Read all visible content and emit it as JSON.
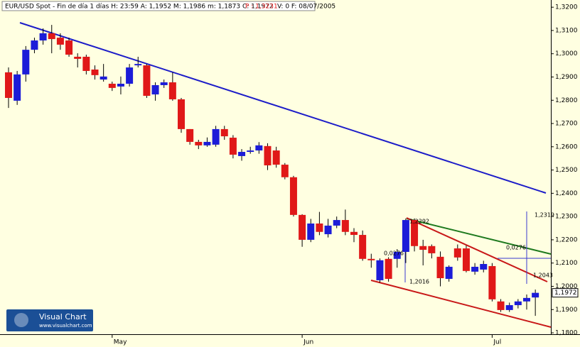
{
  "chart_data": {
    "type": "candlestick",
    "header": "EUR/USD Spot - Fin de día 1 días H: 23:59 A: 1,1952 M: 1,1986 m: 1,1873 C: 1,1972",
    "header_p": "P : 1,3231",
    "header_rest": "V: 0 F: 08/07/2005",
    "logo_title": "Visual Chart",
    "logo_url": "www.visualchart.com",
    "up_color": "#1c1cd8",
    "down_color": "#e01818",
    "categories": [
      null,
      null,
      null,
      null,
      null,
      null,
      null,
      null,
      null,
      null,
      null,
      null,
      "May",
      null,
      null,
      null,
      null,
      null,
      null,
      null,
      null,
      null,
      null,
      null,
      null,
      null,
      null,
      null,
      null,
      null,
      null,
      null,
      null,
      null,
      "Jun",
      null,
      null,
      null,
      null,
      null,
      null,
      null,
      null,
      null,
      null,
      null,
      null,
      null,
      null,
      null,
      null,
      null,
      null,
      null,
      null,
      null,
      "Jul",
      null,
      null,
      null,
      null,
      null
    ],
    "open": [
      1.292,
      1.2798,
      1.2911,
      1.3017,
      1.3057,
      1.3088,
      1.3069,
      1.3057,
      1.2987,
      1.2987,
      1.2932,
      1.2889,
      1.2871,
      1.2859,
      1.2871,
      1.295,
      1.295,
      1.2825,
      1.2865,
      1.2877,
      1.2804,
      1.2676,
      1.2621,
      1.2606,
      1.2609,
      1.2676,
      1.2639,
      1.256,
      1.2578,
      1.2584,
      1.2603,
      1.2584,
      1.2523,
      1.2469,
      1.2307,
      1.22,
      1.227,
      1.2224,
      1.2261,
      1.2285,
      1.2234,
      1.2221,
      1.2118,
      1.2026,
      1.2118,
      1.2118,
      1.2148,
      1.2285,
      1.2173,
      1.2173,
      1.2127,
      1.2032,
      1.2163,
      1.2163,
      1.2063,
      1.2072,
      1.2087,
      1.1935,
      1.1898,
      1.1919,
      1.1935,
      1.1952
    ],
    "high": [
      1.2941,
      1.2926,
      1.3033,
      1.3069,
      1.3109,
      1.3124,
      1.3088,
      1.3069,
      1.3002,
      1.2996,
      1.295,
      1.2956,
      1.288,
      1.2902,
      1.2956,
      1.2987,
      1.2956,
      1.2877,
      1.2889,
      1.292,
      1.281,
      1.2676,
      1.263,
      1.264,
      1.269,
      1.269,
      1.265,
      1.259,
      1.26,
      1.262,
      1.2615,
      1.26,
      1.253,
      1.2475,
      1.231,
      1.229,
      1.232,
      1.229,
      1.23,
      1.233,
      1.225,
      1.224,
      1.214,
      1.212,
      1.2125,
      1.216,
      1.2292,
      1.2292,
      1.22,
      1.218,
      1.215,
      1.209,
      1.218,
      1.2175,
      1.21,
      1.211,
      1.21,
      1.1945,
      1.193,
      1.1945,
      1.1965,
      1.1986
    ],
    "low": [
      1.2767,
      1.278,
      1.288,
      1.3002,
      1.3039,
      1.3002,
      1.3017,
      1.2987,
      1.2941,
      1.2911,
      1.2889,
      1.288,
      1.284,
      1.2825,
      1.2859,
      1.2941,
      1.281,
      1.2798,
      1.2853,
      1.2798,
      1.266,
      1.2609,
      1.259,
      1.26,
      1.26,
      1.263,
      1.255,
      1.254,
      1.257,
      1.257,
      1.25,
      1.251,
      1.246,
      1.23,
      1.217,
      1.219,
      1.222,
      1.221,
      1.225,
      1.222,
      1.219,
      1.211,
      1.208,
      1.2016,
      1.202,
      1.208,
      1.21,
      1.215,
      1.209,
      1.212,
      1.2,
      1.202,
      1.211,
      1.206,
      1.205,
      1.206,
      1.1935,
      1.189,
      1.189,
      1.1905,
      1.19,
      1.1873
    ],
    "close": [
      1.281,
      1.2911,
      1.3017,
      1.3057,
      1.3088,
      1.3063,
      1.3039,
      1.2996,
      1.2978,
      1.2926,
      1.2908,
      1.2902,
      1.2853,
      1.2871,
      1.2941,
      1.2956,
      1.2819,
      1.2865,
      1.2877,
      1.2804,
      1.2676,
      1.2621,
      1.2606,
      1.2621,
      1.2676,
      1.2645,
      1.2566,
      1.2578,
      1.2584,
      1.2606,
      1.252,
      1.2523,
      1.2469,
      1.2307,
      1.22,
      1.227,
      1.2234,
      1.2261,
      1.2285,
      1.2234,
      1.2221,
      1.2118,
      1.2112,
      1.2112,
      1.2032,
      1.2148,
      1.2285,
      1.2173,
      1.2157,
      1.2142,
      1.2035,
      1.2084,
      1.2124,
      1.2066,
      1.2084,
      1.2096,
      1.1944,
      1.1898,
      1.1919,
      1.1935,
      1.195,
      1.1972
    ],
    "last_label": "1,1972",
    "annotations": [
      "1,2292",
      "0,0276",
      "1,2016",
      "1,2319",
      "0,0276",
      "1,2043"
    ],
    "ylim": [
      1.1794,
      1.3231
    ],
    "yticks": [
      {
        "value": 1.18,
        "label": "1,1800"
      },
      {
        "value": 1.19,
        "label": "1,1900"
      },
      {
        "value": 1.2,
        "label": "1,2000"
      },
      {
        "value": 1.21,
        "label": "1,2100"
      },
      {
        "value": 1.22,
        "label": "1,2200"
      },
      {
        "value": 1.23,
        "label": "1,2300"
      },
      {
        "value": 1.24,
        "label": "1,2400"
      },
      {
        "value": 1.25,
        "label": "1,2500"
      },
      {
        "value": 1.26,
        "label": "1,2600"
      },
      {
        "value": 1.27,
        "label": "1,2700"
      },
      {
        "value": 1.28,
        "label": "1,2800"
      },
      {
        "value": 1.29,
        "label": "1,2900"
      },
      {
        "value": 1.3,
        "label": "1,3000"
      },
      {
        "value": 1.31,
        "label": "1,3100"
      },
      {
        "value": 1.32,
        "label": "1,3200"
      }
    ]
  }
}
